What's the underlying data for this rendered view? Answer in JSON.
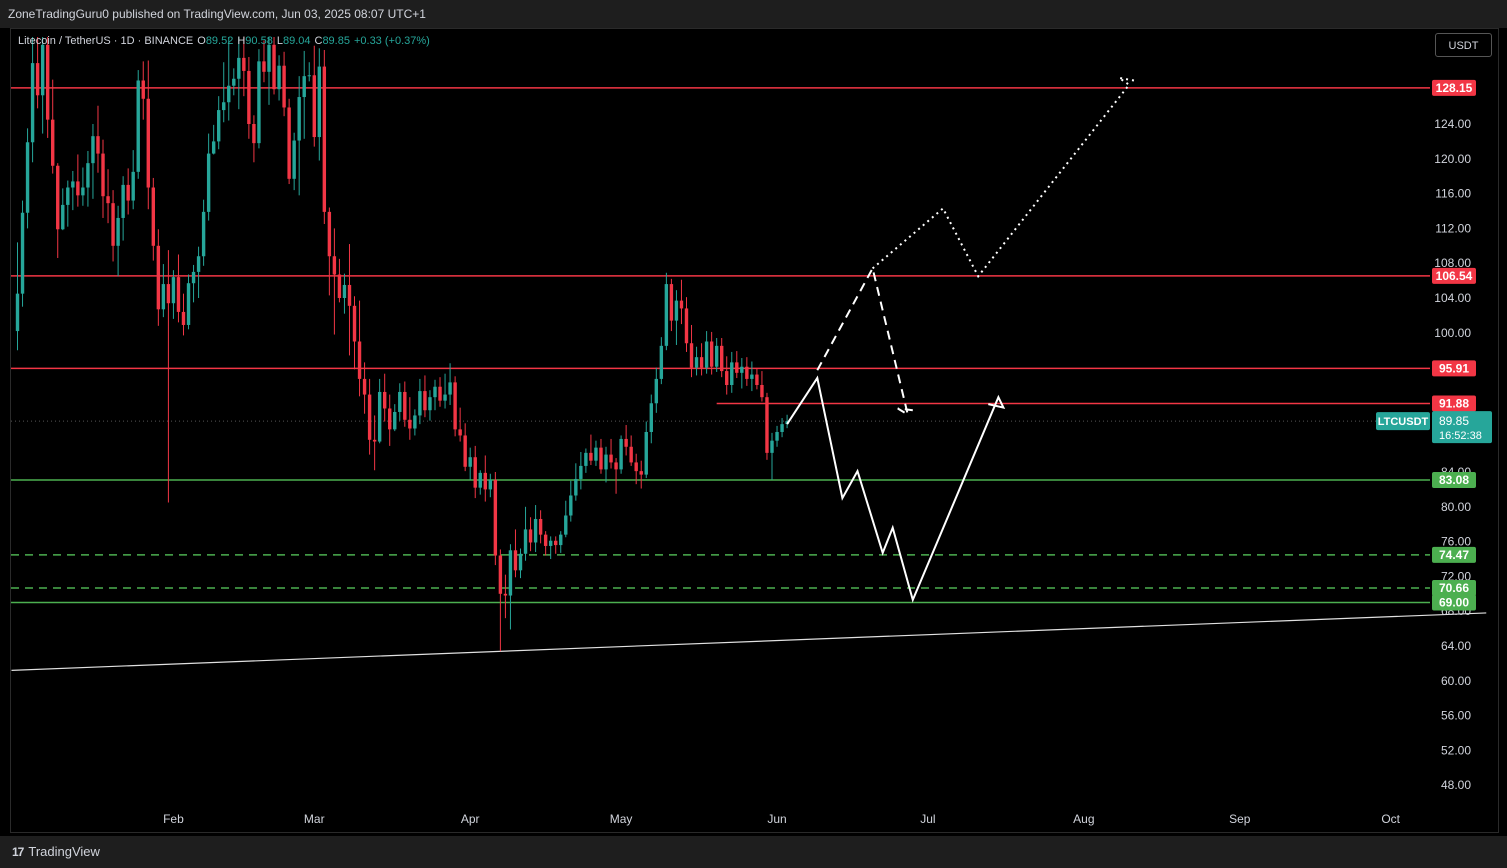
{
  "header": {
    "publish_text": "ZoneTradingGuru0 published on TradingView.com, Jun 03, 2025 08:07 UTC+1"
  },
  "footer": {
    "brand_text": "TradingView",
    "logo_glyph": "17"
  },
  "legend": {
    "symbol": "Litecoin / TetherUS · 1D · BINANCE",
    "o_label": "O",
    "o_value": "89.52",
    "h_label": "H",
    "h_value": "90.58",
    "l_label": "L",
    "l_value": "89.04",
    "c_label": "C",
    "c_value": "89.85",
    "change": "+0.33 (+0.37%)"
  },
  "currency_button": "USDT",
  "colors": {
    "up": "#26a69a",
    "down": "#f23645",
    "resistance": "#f23645",
    "support": "#4caf50",
    "drawing": "#ffffff",
    "background": "#000000"
  },
  "chart_data": {
    "type": "candlestick",
    "symbol_tag": "LTCUSDT",
    "last_price": "89.85",
    "countdown": "16:52:38",
    "y_ticks": [
      "124.00",
      "120.00",
      "116.00",
      "112.00",
      "108.00",
      "104.00",
      "100.00",
      "80.00",
      "76.00",
      "72.00",
      "64.00",
      "60.00",
      "56.00",
      "52.00",
      "48.00"
    ],
    "partially_hidden_ticks": [
      "84.00",
      "68.00"
    ],
    "x_ticks": [
      {
        "label": "Feb",
        "date": "2025-02-01"
      },
      {
        "label": "Mar",
        "date": "2025-03-01"
      },
      {
        "label": "Apr",
        "date": "2025-04-01"
      },
      {
        "label": "May",
        "date": "2025-05-01"
      },
      {
        "label": "Jun",
        "date": "2025-06-01"
      },
      {
        "label": "Jul",
        "date": "2025-07-01"
      },
      {
        "label": "Aug",
        "date": "2025-08-01"
      },
      {
        "label": "Sep",
        "date": "2025-09-01"
      },
      {
        "label": "Oct",
        "date": "2025-10-01"
      }
    ],
    "horizontal_levels": [
      {
        "price": 128.15,
        "label": "128.15",
        "kind": "resistance",
        "start": "2025-01-01"
      },
      {
        "price": 106.54,
        "label": "106.54",
        "kind": "resistance",
        "start": "2025-01-01"
      },
      {
        "price": 95.91,
        "label": "95.91",
        "kind": "resistance",
        "start": "2025-01-01"
      },
      {
        "price": 91.88,
        "label": "91.88",
        "kind": "resistance",
        "start": "2025-05-20"
      },
      {
        "price": 83.08,
        "label": "83.08",
        "kind": "support",
        "style": "solid",
        "start": "2025-01-01"
      },
      {
        "price": 74.47,
        "label": "74.47",
        "kind": "support",
        "style": "dashed",
        "start": "2025-01-01"
      },
      {
        "price": 70.66,
        "label": "70.66",
        "kind": "support",
        "style": "dashed",
        "start": "2025-01-01"
      },
      {
        "price": 69.0,
        "label": "69.00",
        "kind": "support",
        "style": "solid",
        "start": "2025-01-01"
      }
    ],
    "trendline": [
      [
        "2025-01-01",
        61.2
      ],
      [
        "2025-10-20",
        67.8
      ]
    ],
    "projection_solid": [
      [
        "2025-06-03",
        89.5
      ],
      [
        "2025-06-09",
        94.8
      ],
      [
        "2025-06-14",
        81.0
      ],
      [
        "2025-06-17",
        84.1
      ],
      [
        "2025-06-22",
        74.7
      ],
      [
        "2025-06-24",
        77.6
      ],
      [
        "2025-06-28",
        69.3
      ],
      [
        "2025-07-15",
        92.6
      ],
      [
        "2025-07-16",
        91.4
      ],
      [
        "2025-07-13",
        91.8
      ]
    ],
    "projection_dashed": [
      [
        "2025-06-09",
        95.7
      ],
      [
        "2025-06-20",
        107.4
      ],
      [
        "2025-06-27",
        90.6
      ],
      [
        "2025-06-25",
        91.3
      ],
      [
        "2025-06-28",
        91.1
      ]
    ],
    "projection_dotted": [
      [
        "2025-06-20",
        107.4
      ],
      [
        "2025-07-04",
        114.3
      ],
      [
        "2025-07-11",
        106.5
      ],
      [
        "2025-08-10",
        128.5
      ],
      [
        "2025-08-08",
        129.3
      ],
      [
        "2025-08-11",
        129.0
      ]
    ],
    "candles": [
      [
        "2025-01-01",
        100.2,
        110.4,
        98.0,
        104.5
      ],
      [
        "2025-01-02",
        104.5,
        115.2,
        103.0,
        113.8
      ],
      [
        "2025-01-03",
        113.8,
        123.5,
        112.0,
        121.9
      ],
      [
        "2025-01-04",
        121.9,
        134.0,
        119.6,
        131.0
      ],
      [
        "2025-01-05",
        131.0,
        134.0,
        125.8,
        127.3
      ],
      [
        "2025-01-06",
        127.3,
        134.0,
        122.9,
        133.1
      ],
      [
        "2025-01-07",
        133.1,
        134.0,
        122.4,
        124.5
      ],
      [
        "2025-01-08",
        124.5,
        129.1,
        118.3,
        119.2
      ],
      [
        "2025-01-09",
        119.2,
        119.5,
        108.6,
        111.9
      ],
      [
        "2025-01-10",
        111.9,
        116.6,
        111.8,
        114.7
      ],
      [
        "2025-01-11",
        114.7,
        117.5,
        112.2,
        116.7
      ],
      [
        "2025-01-12",
        116.7,
        118.6,
        114.1,
        117.4
      ],
      [
        "2025-01-13",
        117.4,
        120.5,
        114.5,
        115.8
      ],
      [
        "2025-01-14",
        115.8,
        119.0,
        114.6,
        116.7
      ],
      [
        "2025-01-15",
        116.7,
        120.9,
        114.5,
        119.5
      ],
      [
        "2025-01-16",
        119.5,
        124.0,
        115.4,
        122.6
      ],
      [
        "2025-01-17",
        122.6,
        126.1,
        118.4,
        120.6
      ],
      [
        "2025-01-18",
        120.6,
        122.2,
        113.2,
        115.7
      ],
      [
        "2025-01-19",
        115.7,
        118.8,
        112.6,
        114.9
      ],
      [
        "2025-01-20",
        114.9,
        116.4,
        108.2,
        110.0
      ],
      [
        "2025-01-21",
        110.0,
        114.6,
        106.5,
        113.2
      ],
      [
        "2025-01-22",
        113.2,
        118.0,
        110.6,
        117.0
      ],
      [
        "2025-01-23",
        117.0,
        118.9,
        113.6,
        115.2
      ],
      [
        "2025-01-24",
        115.2,
        121.0,
        114.2,
        118.5
      ],
      [
        "2025-01-25",
        118.5,
        130.2,
        117.7,
        129.0
      ],
      [
        "2025-01-26",
        129.0,
        131.2,
        124.5,
        126.9
      ],
      [
        "2025-01-27",
        126.9,
        131.3,
        114.2,
        116.7
      ],
      [
        "2025-01-28",
        116.7,
        117.8,
        108.3,
        110.0
      ],
      [
        "2025-01-29",
        110.0,
        111.9,
        100.8,
        102.7
      ],
      [
        "2025-01-30",
        102.7,
        107.9,
        101.8,
        105.6
      ],
      [
        "2025-01-31",
        105.6,
        109.5,
        80.5,
        103.4
      ],
      [
        "2025-02-01",
        103.4,
        107.2,
        101.6,
        106.4
      ],
      [
        "2025-02-02",
        106.4,
        109.0,
        101.2,
        102.4
      ],
      [
        "2025-02-03",
        102.4,
        104.5,
        99.7,
        100.9
      ],
      [
        "2025-02-04",
        100.9,
        106.7,
        100.4,
        105.7
      ],
      [
        "2025-02-05",
        105.7,
        107.8,
        103.5,
        107.0
      ],
      [
        "2025-02-06",
        107.0,
        109.9,
        104.0,
        108.8
      ],
      [
        "2025-02-07",
        108.8,
        115.3,
        107.7,
        113.9
      ],
      [
        "2025-02-08",
        113.9,
        122.9,
        112.9,
        120.6
      ],
      [
        "2025-02-09",
        120.6,
        123.9,
        120.5,
        122.0
      ],
      [
        "2025-02-10",
        122.0,
        127.2,
        121.1,
        125.6
      ],
      [
        "2025-02-11",
        125.6,
        131.1,
        124.2,
        126.5
      ],
      [
        "2025-02-12",
        126.5,
        134.0,
        124.4,
        128.4
      ],
      [
        "2025-02-13",
        128.4,
        130.4,
        127.3,
        129.2
      ],
      [
        "2025-02-14",
        129.2,
        134.0,
        125.7,
        131.6
      ],
      [
        "2025-02-15",
        131.6,
        134.0,
        127.2,
        130.1
      ],
      [
        "2025-02-16",
        130.1,
        131.7,
        122.3,
        124.0
      ],
      [
        "2025-02-17",
        124.0,
        125.0,
        119.6,
        121.8
      ],
      [
        "2025-02-18",
        121.8,
        132.6,
        121.2,
        131.2
      ],
      [
        "2025-02-19",
        131.2,
        133.6,
        128.8,
        130.0
      ],
      [
        "2025-02-20",
        130.0,
        134.0,
        126.2,
        133.1
      ],
      [
        "2025-02-21",
        133.1,
        134.0,
        127.4,
        128.0
      ],
      [
        "2025-02-22",
        128.0,
        131.9,
        126.7,
        130.7
      ],
      [
        "2025-02-23",
        130.7,
        132.3,
        124.9,
        125.9
      ],
      [
        "2025-02-24",
        125.9,
        126.9,
        117.1,
        117.7
      ],
      [
        "2025-02-25",
        117.7,
        123.0,
        116.4,
        122.1
      ],
      [
        "2025-02-26",
        122.1,
        129.5,
        115.8,
        127.1
      ],
      [
        "2025-02-27",
        127.1,
        132.4,
        122.3,
        129.5
      ],
      [
        "2025-02-28",
        129.5,
        131.1,
        128.9,
        129.6
      ],
      [
        "2025-03-01",
        129.6,
        133.0,
        121.4,
        122.5
      ],
      [
        "2025-03-02",
        122.5,
        132.7,
        119.8,
        130.6
      ],
      [
        "2025-03-03",
        130.6,
        132.5,
        112.5,
        113.9
      ],
      [
        "2025-03-04",
        113.9,
        114.4,
        104.3,
        108.8
      ],
      [
        "2025-03-05",
        108.8,
        112.0,
        99.8,
        106.7
      ],
      [
        "2025-03-06",
        106.7,
        108.5,
        103.5,
        104.0
      ],
      [
        "2025-03-07",
        104.0,
        106.8,
        102.2,
        105.5
      ],
      [
        "2025-03-08",
        105.5,
        110.2,
        97.4,
        103.1
      ],
      [
        "2025-03-09",
        103.1,
        104.2,
        95.8,
        99.0
      ],
      [
        "2025-03-10",
        99.0,
        103.7,
        92.7,
        94.7
      ],
      [
        "2025-03-11",
        94.7,
        96.6,
        90.7,
        92.9
      ],
      [
        "2025-03-12",
        92.9,
        94.7,
        86.0,
        87.7
      ],
      [
        "2025-03-13",
        87.7,
        90.5,
        84.2,
        87.5
      ],
      [
        "2025-03-14",
        87.5,
        94.7,
        87.3,
        93.2
      ],
      [
        "2025-03-15",
        93.2,
        95.3,
        89.8,
        91.3
      ],
      [
        "2025-03-16",
        91.3,
        92.9,
        87.0,
        88.9
      ],
      [
        "2025-03-17",
        88.9,
        91.8,
        88.7,
        90.9
      ],
      [
        "2025-03-18",
        90.9,
        94.2,
        89.9,
        93.2
      ],
      [
        "2025-03-19",
        93.2,
        94.4,
        89.2,
        90.0
      ],
      [
        "2025-03-20",
        90.0,
        92.6,
        87.7,
        89.0
      ],
      [
        "2025-03-21",
        89.0,
        91.2,
        88.2,
        90.5
      ],
      [
        "2025-03-22",
        90.5,
        94.7,
        89.5,
        93.3
      ],
      [
        "2025-03-23",
        93.3,
        95.1,
        90.3,
        91.1
      ],
      [
        "2025-03-24",
        91.1,
        93.4,
        89.9,
        92.6
      ],
      [
        "2025-03-25",
        92.6,
        94.6,
        91.1,
        93.8
      ],
      [
        "2025-03-26",
        93.8,
        94.9,
        91.5,
        92.2
      ],
      [
        "2025-03-27",
        92.2,
        95.3,
        91.3,
        92.9
      ],
      [
        "2025-03-28",
        92.9,
        96.5,
        91.7,
        94.3
      ],
      [
        "2025-03-29",
        94.3,
        95.0,
        88.1,
        88.9
      ],
      [
        "2025-03-30",
        88.9,
        91.4,
        87.5,
        88.2
      ],
      [
        "2025-03-31",
        88.2,
        89.6,
        84.1,
        84.6
      ],
      [
        "2025-04-01",
        84.6,
        86.8,
        83.1,
        85.7
      ],
      [
        "2025-04-02",
        85.7,
        87.0,
        81.0,
        82.2
      ],
      [
        "2025-04-03",
        82.2,
        84.2,
        81.4,
        83.9
      ],
      [
        "2025-04-04",
        83.9,
        85.9,
        80.6,
        82.0
      ],
      [
        "2025-04-05",
        82.0,
        83.8,
        81.1,
        83.1
      ],
      [
        "2025-04-06",
        83.1,
        84.0,
        73.3,
        74.4
      ],
      [
        "2025-04-07",
        74.4,
        75.1,
        63.4,
        70.0
      ],
      [
        "2025-04-08",
        70.0,
        72.2,
        67.2,
        69.8
      ],
      [
        "2025-04-09",
        69.8,
        75.7,
        65.9,
        75.0
      ],
      [
        "2025-04-10",
        75.0,
        77.4,
        71.9,
        72.7
      ],
      [
        "2025-04-11",
        72.7,
        75.2,
        71.8,
        74.6
      ],
      [
        "2025-04-12",
        74.6,
        80.0,
        73.8,
        77.4
      ],
      [
        "2025-04-13",
        77.4,
        78.8,
        74.9,
        75.9
      ],
      [
        "2025-04-14",
        75.9,
        80.2,
        74.8,
        78.6
      ],
      [
        "2025-04-15",
        78.6,
        79.6,
        75.8,
        76.8
      ],
      [
        "2025-04-16",
        76.8,
        77.2,
        74.4,
        75.5
      ],
      [
        "2025-04-17",
        75.5,
        76.6,
        74.0,
        76.1
      ],
      [
        "2025-04-18",
        76.1,
        76.6,
        74.6,
        75.6
      ],
      [
        "2025-04-19",
        75.6,
        77.2,
        74.7,
        76.8
      ],
      [
        "2025-04-20",
        76.8,
        80.7,
        76.5,
        79.0
      ],
      [
        "2025-04-21",
        79.0,
        83.0,
        78.3,
        81.3
      ],
      [
        "2025-04-22",
        81.3,
        85.0,
        80.7,
        83.2
      ],
      [
        "2025-04-23",
        83.2,
        86.3,
        82.0,
        84.7
      ],
      [
        "2025-04-24",
        84.7,
        86.7,
        83.9,
        86.2
      ],
      [
        "2025-04-25",
        86.2,
        88.3,
        84.8,
        85.3
      ],
      [
        "2025-04-26",
        85.3,
        87.6,
        84.7,
        86.8
      ],
      [
        "2025-04-27",
        86.8,
        87.8,
        83.8,
        84.3
      ],
      [
        "2025-04-28",
        84.3,
        86.9,
        82.8,
        86.0
      ],
      [
        "2025-04-29",
        86.0,
        87.8,
        84.4,
        85.1
      ],
      [
        "2025-04-30",
        85.1,
        85.6,
        81.5,
        84.3
      ],
      [
        "2025-05-01",
        84.3,
        88.2,
        83.8,
        87.8
      ],
      [
        "2025-05-02",
        87.8,
        89.4,
        85.9,
        86.9
      ],
      [
        "2025-05-03",
        86.9,
        88.2,
        84.7,
        85.1
      ],
      [
        "2025-05-04",
        85.1,
        86.1,
        82.6,
        84.1
      ],
      [
        "2025-05-05",
        84.1,
        85.3,
        82.1,
        83.7
      ],
      [
        "2025-05-06",
        83.7,
        89.8,
        83.3,
        88.6
      ],
      [
        "2025-05-07",
        88.6,
        92.9,
        87.3,
        91.9
      ],
      [
        "2025-05-08",
        91.9,
        96.0,
        90.8,
        94.7
      ],
      [
        "2025-05-09",
        94.7,
        99.5,
        94.1,
        98.5
      ],
      [
        "2025-05-10",
        98.5,
        106.9,
        98.0,
        105.6
      ],
      [
        "2025-05-11",
        105.6,
        106.2,
        100.2,
        101.4
      ],
      [
        "2025-05-12",
        101.4,
        104.9,
        98.6,
        103.7
      ],
      [
        "2025-05-13",
        103.7,
        106.1,
        101.0,
        102.8
      ],
      [
        "2025-05-14",
        102.8,
        104.1,
        97.8,
        98.8
      ],
      [
        "2025-05-15",
        98.8,
        100.9,
        94.9,
        96.0
      ],
      [
        "2025-05-16",
        96.0,
        98.4,
        95.1,
        97.2
      ],
      [
        "2025-05-17",
        97.2,
        98.8,
        95.1,
        96.0
      ],
      [
        "2025-05-18",
        96.0,
        100.2,
        95.3,
        99.0
      ],
      [
        "2025-05-19",
        99.0,
        100.1,
        95.2,
        96.1
      ],
      [
        "2025-05-20",
        96.1,
        99.4,
        95.5,
        98.5
      ],
      [
        "2025-05-21",
        98.5,
        99.4,
        94.9,
        95.6
      ],
      [
        "2025-05-22",
        95.6,
        97.3,
        92.9,
        94.0
      ],
      [
        "2025-05-23",
        94.0,
        97.8,
        93.1,
        96.6
      ],
      [
        "2025-05-24",
        96.6,
        97.9,
        94.8,
        95.4
      ],
      [
        "2025-05-25",
        95.4,
        97.1,
        93.6,
        96.1
      ],
      [
        "2025-05-26",
        96.1,
        97.2,
        93.9,
        94.7
      ],
      [
        "2025-05-27",
        94.7,
        96.7,
        93.3,
        95.2
      ],
      [
        "2025-05-28",
        95.2,
        95.9,
        93.5,
        94.0
      ],
      [
        "2025-05-29",
        94.0,
        95.6,
        92.1,
        92.6
      ],
      [
        "2025-05-30",
        92.6,
        93.1,
        85.4,
        86.2
      ],
      [
        "2025-05-31",
        86.2,
        88.5,
        83.1,
        87.6
      ],
      [
        "2025-06-01",
        87.6,
        89.3,
        86.9,
        88.6
      ],
      [
        "2025-06-02",
        88.6,
        90.2,
        88.0,
        89.5
      ],
      [
        "2025-06-03",
        89.52,
        90.58,
        89.04,
        89.85
      ]
    ]
  }
}
